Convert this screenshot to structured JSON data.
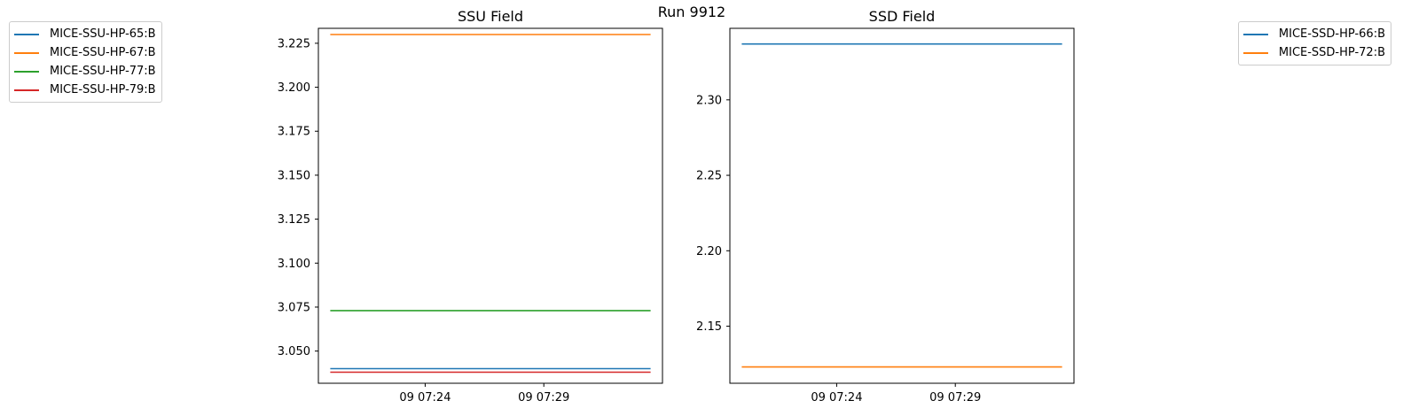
{
  "figure": {
    "title": "Run 9912"
  },
  "chart_data": [
    {
      "type": "line",
      "title": "SSU Field",
      "xlabel": "",
      "ylabel": "",
      "x_ticks": [
        "09 07:24",
        "09 07:29"
      ],
      "x_range": [
        "09 07:19:30",
        "09 07:34:00"
      ],
      "y_ticks": [
        "3.050",
        "3.075",
        "3.100",
        "3.125",
        "3.150",
        "3.175",
        "3.200",
        "3.225"
      ],
      "ylim": [
        3.0317,
        3.2335
      ],
      "legend_placement": "upper-left outside",
      "grid": false,
      "series": [
        {
          "name": "MICE-SSU-HP-65:B",
          "color": "#1f77b4",
          "x": [
            "09 07:20",
            "09 07:33:30"
          ],
          "values": [
            3.04,
            3.04
          ]
        },
        {
          "name": "MICE-SSU-HP-67:B",
          "color": "#ff7f0e",
          "x": [
            "09 07:20",
            "09 07:33:30"
          ],
          "values": [
            3.23,
            3.23
          ]
        },
        {
          "name": "MICE-SSU-HP-77:B",
          "color": "#2ca02c",
          "x": [
            "09 07:20",
            "09 07:33:30"
          ],
          "values": [
            3.073,
            3.073
          ]
        },
        {
          "name": "MICE-SSU-HP-79:B",
          "color": "#d62728",
          "x": [
            "09 07:20",
            "09 07:33:30"
          ],
          "values": [
            3.038,
            3.038
          ]
        }
      ]
    },
    {
      "type": "line",
      "title": "SSD Field",
      "xlabel": "",
      "ylabel": "",
      "x_ticks": [
        "09 07:24",
        "09 07:29"
      ],
      "x_range": [
        "09 07:19:30",
        "09 07:34:00"
      ],
      "y_ticks": [
        "2.15",
        "2.20",
        "2.25",
        "2.30"
      ],
      "ylim": [
        2.1122,
        2.3474
      ],
      "legend_placement": "upper-right outside",
      "grid": false,
      "series": [
        {
          "name": "MICE-SSD-HP-66:B",
          "color": "#1f77b4",
          "x": [
            "09 07:20",
            "09 07:33:30"
          ],
          "values": [
            2.337,
            2.337
          ]
        },
        {
          "name": "MICE-SSD-HP-72:B",
          "color": "#ff7f0e",
          "x": [
            "09 07:20",
            "09 07:33:30"
          ],
          "values": [
            2.123,
            2.123
          ]
        }
      ]
    }
  ]
}
